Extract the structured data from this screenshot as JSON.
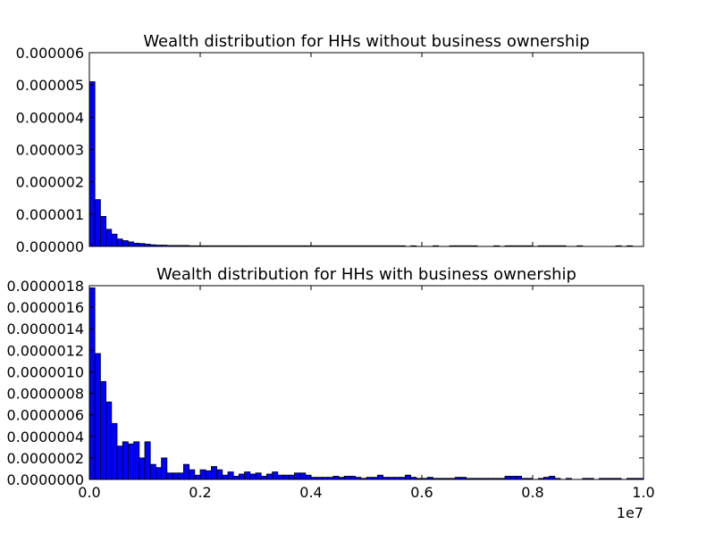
{
  "chart_data": [
    {
      "type": "bar",
      "title": "Wealth distribution for HHs without business ownership",
      "xlabel": "",
      "ylabel": "",
      "xlim": [
        0,
        10000000
      ],
      "ylim": [
        0,
        6e-06
      ],
      "grid": false,
      "bar_color": "#0000ff",
      "bin_width": 100000,
      "x_ticks": [
        0,
        2000000,
        4000000,
        6000000,
        8000000,
        10000000
      ],
      "x_tick_labels": [],
      "y_ticks": [
        0,
        1e-06,
        2e-06,
        3e-06,
        4e-06,
        5e-06,
        6e-06
      ],
      "y_tick_labels": [
        "0.000000",
        "0.000001",
        "0.000002",
        "0.000003",
        "0.000004",
        "0.000005",
        "0.000006"
      ],
      "values": [
        5.1e-06,
        1.45e-06,
        9.3e-07,
        5.3e-07,
        3.8e-07,
        2.3e-07,
        1.8e-07,
        1.4e-07,
        1e-07,
        9e-08,
        7e-08,
        5e-08,
        4e-08,
        4e-08,
        3e-08,
        3e-08,
        3e-08,
        3e-08,
        2e-08,
        2e-08,
        2e-08,
        2e-08,
        2e-08,
        2e-08,
        2e-08,
        2e-08,
        2e-08,
        2e-08,
        2e-08,
        2e-08,
        2e-08,
        2e-08,
        2e-08,
        2e-08,
        2e-08,
        2e-08,
        2e-08,
        2e-08,
        2e-08,
        2e-08,
        2e-08,
        2e-08,
        2e-08,
        2e-08,
        2e-08,
        2e-08,
        2e-08,
        2e-08,
        2e-08,
        2e-08,
        2e-08,
        2e-08,
        2e-08,
        2e-08,
        2e-08,
        2e-08,
        2e-08,
        0,
        2e-08,
        0,
        0,
        0,
        2e-08,
        0,
        0,
        2e-08,
        2e-08,
        2e-08,
        2e-08,
        2e-08,
        0,
        0,
        0,
        2e-08,
        0,
        2e-08,
        2e-08,
        2e-08,
        2e-08,
        2e-08,
        0,
        2e-08,
        2e-08,
        2e-08,
        2e-08,
        2e-08,
        0,
        0,
        2e-08,
        0,
        0,
        0,
        0,
        0,
        0,
        2e-08,
        0,
        2e-08,
        0,
        0
      ]
    },
    {
      "type": "bar",
      "title": "Wealth distribution for HHs with business ownership",
      "xlabel": "",
      "ylabel": "",
      "xlim": [
        0,
        10000000
      ],
      "ylim": [
        0,
        1.8e-06
      ],
      "grid": false,
      "bar_color": "#0000ff",
      "bin_width": 100000,
      "x_ticks": [
        0,
        2000000,
        4000000,
        6000000,
        8000000,
        10000000
      ],
      "x_tick_labels": [
        "0.0",
        "0.2",
        "0.4",
        "0.6",
        "0.8",
        "1.0"
      ],
      "x_offset_label": "1e7",
      "y_ticks": [
        0,
        2e-07,
        4e-07,
        6e-07,
        8e-07,
        1e-06,
        1.2e-06,
        1.4e-06,
        1.6e-06,
        1.8e-06
      ],
      "y_tick_labels": [
        "0.0000000",
        "0.0000002",
        "0.0000004",
        "0.0000006",
        "0.0000008",
        "0.0000010",
        "0.0000012",
        "0.0000014",
        "0.0000016",
        "0.0000018"
      ],
      "values": [
        1.78e-06,
        1.17e-06,
        9.1e-07,
        7.2e-07,
        5.2e-07,
        3.1e-07,
        3.5e-07,
        3.3e-07,
        3.5e-07,
        2e-07,
        3.5e-07,
        1.4e-07,
        1.1e-07,
        2e-07,
        6e-08,
        6e-08,
        6e-08,
        1.4e-07,
        9e-08,
        4e-08,
        9e-08,
        8e-08,
        1.2e-07,
        9e-08,
        4e-08,
        7e-08,
        3e-08,
        5e-08,
        7e-08,
        5e-08,
        6e-08,
        3e-08,
        5e-08,
        7e-08,
        4e-08,
        4e-08,
        4e-08,
        6e-08,
        6e-08,
        4e-08,
        2e-08,
        2e-08,
        2e-08,
        2e-08,
        3e-08,
        2e-08,
        3e-08,
        3e-08,
        2e-08,
        1e-08,
        2e-08,
        2e-08,
        4e-08,
        2e-08,
        2e-08,
        2e-08,
        2e-08,
        4e-08,
        2e-08,
        1e-08,
        1e-08,
        2e-08,
        1e-08,
        1e-08,
        1e-08,
        1e-08,
        2e-08,
        2e-08,
        1e-08,
        1e-08,
        1e-08,
        1e-08,
        1e-08,
        1e-08,
        1e-08,
        3e-08,
        3e-08,
        3e-08,
        1e-08,
        1e-08,
        0,
        1e-08,
        2e-08,
        3e-08,
        1e-08,
        0,
        1e-08,
        0,
        0,
        1e-08,
        1e-08,
        0,
        1e-08,
        1e-08,
        1e-08,
        1e-08,
        0,
        1e-08,
        1e-08,
        1e-08
      ]
    }
  ]
}
